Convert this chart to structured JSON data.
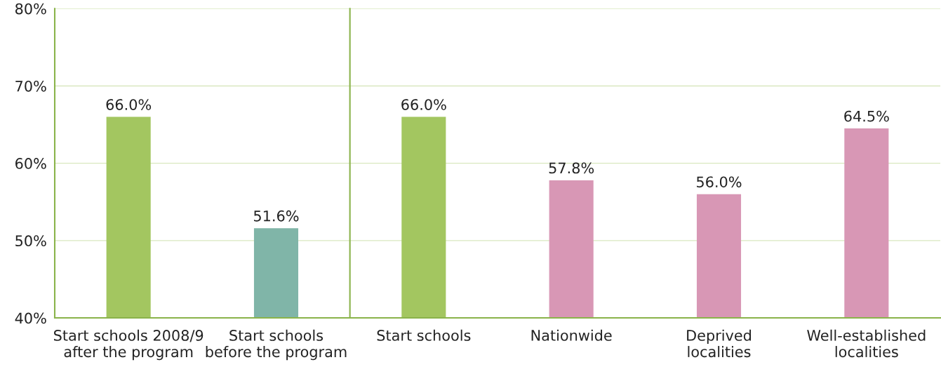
{
  "chart_data": [
    {
      "type": "bar",
      "categories": [
        "Start schools 2008/9\nafter the program",
        "Start schools\nbefore the program"
      ],
      "values": [
        66.0,
        51.6
      ],
      "colors": [
        "#a3c660",
        "#80b5a8"
      ],
      "value_labels": [
        "66.0%",
        "51.6%"
      ],
      "ylim": [
        40,
        80
      ],
      "yticks": [
        {
          "value": 40,
          "label": "40%"
        },
        {
          "value": 50,
          "label": "50%"
        },
        {
          "value": 60,
          "label": "60%"
        },
        {
          "value": 70,
          "label": "70%"
        },
        {
          "value": 80,
          "label": "80%"
        }
      ],
      "grid": "y"
    },
    {
      "type": "bar",
      "categories": [
        "Start schools",
        "Nationwide",
        "Deprived\nlocalities",
        "Well-established\nlocalities"
      ],
      "values": [
        66.0,
        57.8,
        56.0,
        64.5
      ],
      "colors": [
        "#a3c660",
        "#d897b5",
        "#d897b5",
        "#d897b5"
      ],
      "value_labels": [
        "66.0%",
        "57.8%",
        "56.0%",
        "64.5%"
      ],
      "ylim": [
        40,
        80
      ],
      "yticks": [
        {
          "value": 40,
          "label": null
        },
        {
          "value": 50,
          "label": null
        },
        {
          "value": 60,
          "label": null
        },
        {
          "value": 70,
          "label": null
        },
        {
          "value": 80,
          "label": null
        }
      ],
      "grid": "y",
      "tick_labels": "x"
    }
  ]
}
